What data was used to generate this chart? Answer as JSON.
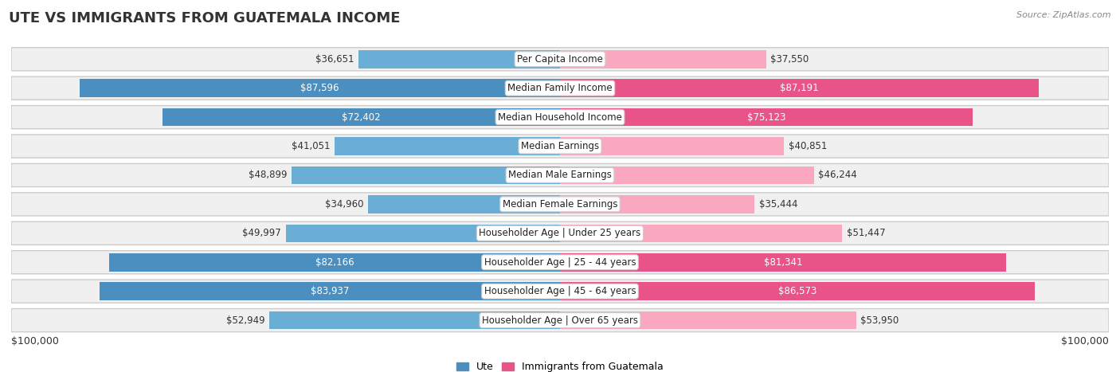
{
  "title": "UTE VS IMMIGRANTS FROM GUATEMALA INCOME",
  "source": "Source: ZipAtlas.com",
  "categories": [
    "Per Capita Income",
    "Median Family Income",
    "Median Household Income",
    "Median Earnings",
    "Median Male Earnings",
    "Median Female Earnings",
    "Householder Age | Under 25 years",
    "Householder Age | 25 - 44 years",
    "Householder Age | 45 - 64 years",
    "Householder Age | Over 65 years"
  ],
  "ute_values": [
    36651,
    87596,
    72402,
    41051,
    48899,
    34960,
    49997,
    82166,
    83937,
    52949
  ],
  "guatemala_values": [
    37550,
    87191,
    75123,
    40851,
    46244,
    35444,
    51447,
    81341,
    86573,
    53950
  ],
  "ute_labels": [
    "$36,651",
    "$87,596",
    "$72,402",
    "$41,051",
    "$48,899",
    "$34,960",
    "$49,997",
    "$82,166",
    "$83,937",
    "$52,949"
  ],
  "guatemala_labels": [
    "$37,550",
    "$87,191",
    "$75,123",
    "$40,851",
    "$46,244",
    "$35,444",
    "$51,447",
    "$81,341",
    "$86,573",
    "$53,950"
  ],
  "ute_color": "#6aaed6",
  "ute_color_dark": "#4a8fc0",
  "guatemala_color": "#f9a8c0",
  "guatemala_color_dark": "#e8538a",
  "max_value": 100000,
  "legend_ute": "Ute",
  "legend_guatemala": "Immigrants from Guatemala",
  "xlabel_left": "$100,000",
  "xlabel_right": "$100,000",
  "white_label_threshold": 55000,
  "title_fontsize": 13,
  "label_fontsize": 8.5,
  "category_fontsize": 8.5,
  "row_bg_color": "#e8e8e8",
  "row_inner_color": "#f5f5f5"
}
